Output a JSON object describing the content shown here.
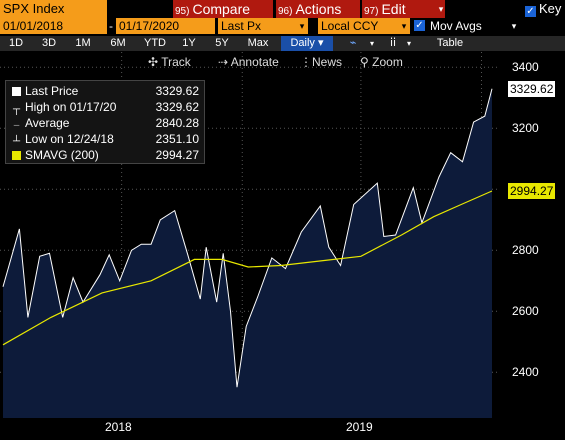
{
  "toolbar": {
    "ticker": "SPX Index",
    "compare": {
      "num": "95)",
      "label": "Compare"
    },
    "actions": {
      "num": "96)",
      "label": "Actions"
    },
    "edit": {
      "num": "97)",
      "label": "Edit"
    },
    "key_label": "Key"
  },
  "range_bar": {
    "start_date": "01/01/2018",
    "separator": "-",
    "end_date": "01/17/2020",
    "field": "Last Px",
    "currency": "Local CCY",
    "mov_avgs_label": "Mov Avgs",
    "mov_avgs_checked": true
  },
  "periods": [
    "1D",
    "3D",
    "1M",
    "6M",
    "YTD",
    "1Y",
    "5Y",
    "Max"
  ],
  "frequency": "Daily",
  "table_label": "Table",
  "tools": [
    "Track",
    "Annotate",
    "News",
    "Zoom"
  ],
  "legend": [
    {
      "label": "Last Price",
      "value": "3329.62",
      "mark": "white-square"
    },
    {
      "label": "High on 01/17/20",
      "value": "3329.62",
      "mark": "high-marker"
    },
    {
      "label": "Average",
      "value": "2840.28",
      "mark": "average-line"
    },
    {
      "label": "Low on 12/24/18",
      "value": "2351.10",
      "mark": "low-marker"
    },
    {
      "label": "SMAVG (200)",
      "value": "2994.27",
      "mark": "yellow-square"
    }
  ],
  "colors": {
    "accent": "#f59c1a",
    "button": "#b0190f",
    "area_fill": "#0d1b3a",
    "sma": "#e8e800"
  },
  "chart_data": {
    "type": "area",
    "x_labels": [
      "2018",
      "2019"
    ],
    "ylim": [
      2250,
      3450
    ],
    "yticks": [
      2400,
      2600,
      2800,
      3000,
      3200,
      3400
    ],
    "last_price_tag": "3329.62",
    "sma_tag": "2994.27",
    "series": [
      {
        "name": "Last Price",
        "x": [
          "2018-01-01",
          "2018-01-26",
          "2018-02-08",
          "2018-02-26",
          "2018-03-13",
          "2018-04-02",
          "2018-04-18",
          "2018-05-03",
          "2018-05-29",
          "2018-06-12",
          "2018-06-28",
          "2018-07-16",
          "2018-07-31",
          "2018-08-15",
          "2018-08-29",
          "2018-09-20",
          "2018-10-10",
          "2018-10-29",
          "2018-11-07",
          "2018-11-23",
          "2018-12-03",
          "2018-12-14",
          "2018-12-24",
          "2019-01-07",
          "2019-01-25",
          "2019-02-15",
          "2019-03-08",
          "2019-04-01",
          "2019-04-30",
          "2019-05-13",
          "2019-05-31",
          "2019-06-20",
          "2019-07-26",
          "2019-08-05",
          "2019-08-23",
          "2019-09-19",
          "2019-10-02",
          "2019-10-28",
          "2019-11-15",
          "2019-12-03",
          "2019-12-20",
          "2020-01-06",
          "2020-01-17"
        ],
        "y": [
          2680,
          2870,
          2580,
          2780,
          2790,
          2580,
          2710,
          2630,
          2720,
          2785,
          2700,
          2800,
          2820,
          2820,
          2900,
          2930,
          2785,
          2640,
          2810,
          2630,
          2790,
          2600,
          2351,
          2550,
          2650,
          2775,
          2740,
          2860,
          2945,
          2810,
          2750,
          2950,
          3020,
          2845,
          2850,
          3005,
          2890,
          3040,
          3120,
          3090,
          3220,
          3240,
          3329.62
        ]
      },
      {
        "name": "SMAVG (200)",
        "x": [
          "2018-01-01",
          "2018-03-15",
          "2018-06-01",
          "2018-08-15",
          "2018-10-20",
          "2018-12-01",
          "2019-01-10",
          "2019-03-01",
          "2019-05-01",
          "2019-07-01",
          "2019-09-01",
          "2019-10-20",
          "2019-12-01",
          "2020-01-17"
        ],
        "y": [
          2490,
          2580,
          2660,
          2700,
          2770,
          2770,
          2745,
          2750,
          2765,
          2780,
          2850,
          2910,
          2950,
          2994.27
        ]
      }
    ]
  }
}
